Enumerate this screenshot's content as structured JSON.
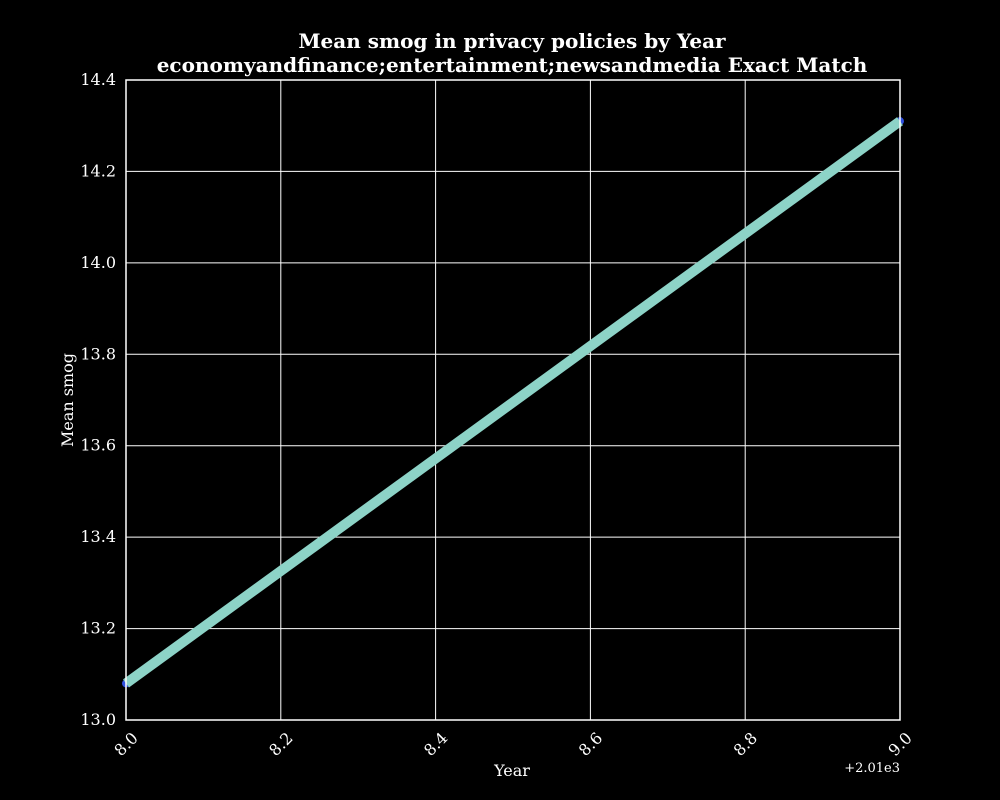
{
  "chart_data": {
    "type": "line",
    "title": "Mean smog in privacy policies by Year",
    "subtitle": "economyandfinance;entertainment;newsandmedia Exact Match",
    "xlabel": "Year",
    "ylabel": "Mean smog",
    "x_offset_label": "+2.01e3",
    "xlim": [
      2018,
      2019
    ],
    "ylim": [
      13.0,
      14.4
    ],
    "x_ticks": [
      2018.0,
      2018.2,
      2018.4,
      2018.6,
      2018.8,
      2019.0
    ],
    "x_tick_labels": [
      "8.0",
      "8.2",
      "8.4",
      "8.6",
      "8.8",
      "9.0"
    ],
    "y_ticks": [
      13.0,
      13.2,
      13.4,
      13.6,
      13.8,
      14.0,
      14.2,
      14.4
    ],
    "y_tick_labels": [
      "13.0",
      "13.2",
      "13.4",
      "13.6",
      "13.8",
      "14.0",
      "14.2",
      "14.4"
    ],
    "grid": true,
    "series": [
      {
        "x": [
          2018,
          2019
        ],
        "y": [
          13.08,
          14.31
        ],
        "color": "#8dd3c7",
        "marker_color": "#3050e0"
      }
    ],
    "colors": {
      "background": "#000000",
      "foreground": "#ffffff",
      "grid": "#ffffff"
    }
  }
}
